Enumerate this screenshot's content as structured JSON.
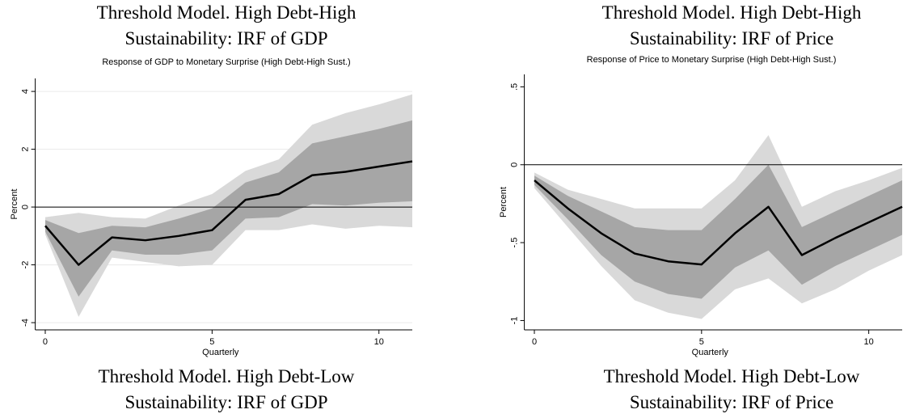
{
  "headings": [
    "Threshold Model. High Debt-High Sustainability: IRF of GDP",
    "Threshold Model. High Debt-High Sustainability: IRF of Price"
  ],
  "footer_headings": [
    "Threshold Model. High Debt-Low Sustainability: IRF of GDP",
    "Threshold Model. High Debt-Low Sustainability: IRF of Price"
  ],
  "chart_data": [
    {
      "type": "line",
      "title": "Response of GDP to Monetary Surprise (High Debt-High Sust.)",
      "xlabel": "Quarterly",
      "ylabel": "Percent",
      "x": [
        0,
        1,
        2,
        3,
        4,
        5,
        6,
        7,
        8,
        9,
        10,
        11
      ],
      "xlim": [
        -0.3,
        11
      ],
      "xticks": [
        0,
        5,
        10
      ],
      "ylim": [
        -4.25,
        4.45
      ],
      "yticks": [
        -4,
        -2,
        0,
        2,
        4
      ],
      "grid": true,
      "refline": 0,
      "bands": [
        {
          "color": "#d9d9d9",
          "upper": [
            -0.35,
            -0.2,
            -0.35,
            -0.4,
            0.05,
            0.45,
            1.25,
            1.65,
            2.85,
            3.25,
            3.55,
            3.9
          ],
          "lower": [
            -0.95,
            -3.8,
            -1.75,
            -1.9,
            -2.05,
            -2.0,
            -0.8,
            -0.8,
            -0.6,
            -0.75,
            -0.65,
            -0.7
          ]
        },
        {
          "color": "#a6a6a6",
          "upper": [
            -0.45,
            -0.9,
            -0.65,
            -0.7,
            -0.4,
            -0.05,
            0.85,
            1.2,
            2.2,
            2.45,
            2.7,
            3.0
          ],
          "lower": [
            -0.85,
            -3.1,
            -1.5,
            -1.65,
            -1.65,
            -1.5,
            -0.4,
            -0.35,
            0.1,
            0.05,
            0.15,
            0.2
          ]
        }
      ],
      "series": [
        {
          "color": "#000000",
          "values": [
            -0.65,
            -2.0,
            -1.05,
            -1.15,
            -1.0,
            -0.8,
            0.25,
            0.45,
            1.1,
            1.22,
            1.4,
            1.58
          ]
        }
      ]
    },
    {
      "type": "line",
      "title": "Response of Price to Monetary Surprise (High Debt-High Sust.)",
      "xlabel": "Quarterly",
      "ylabel": "Percent",
      "x": [
        0,
        1,
        2,
        3,
        4,
        5,
        6,
        7,
        8,
        9,
        10,
        11
      ],
      "xlim": [
        -0.3,
        11
      ],
      "xticks": [
        0,
        5,
        10
      ],
      "ylim": [
        -1.06,
        0.58
      ],
      "yticks": [
        -1,
        {
          "value": -0.5,
          "label": "-.5"
        },
        0,
        {
          "value": 0.5,
          "label": ".5"
        }
      ],
      "grid": false,
      "refline": 0,
      "bands": [
        {
          "color": "#d9d9d9",
          "upper": [
            -0.05,
            -0.16,
            -0.22,
            -0.28,
            -0.28,
            -0.28,
            -0.1,
            0.19,
            -0.27,
            -0.17,
            -0.1,
            -0.02
          ],
          "lower": [
            -0.15,
            -0.4,
            -0.65,
            -0.87,
            -0.95,
            -0.99,
            -0.8,
            -0.73,
            -0.89,
            -0.8,
            -0.68,
            -0.58
          ]
        },
        {
          "color": "#a6a6a6",
          "upper": [
            -0.07,
            -0.2,
            -0.3,
            -0.4,
            -0.42,
            -0.42,
            -0.22,
            0.0,
            -0.4,
            -0.3,
            -0.2,
            -0.1
          ],
          "lower": [
            -0.13,
            -0.35,
            -0.58,
            -0.75,
            -0.83,
            -0.86,
            -0.66,
            -0.55,
            -0.77,
            -0.65,
            -0.55,
            -0.45
          ]
        }
      ],
      "series": [
        {
          "color": "#000000",
          "values": [
            -0.1,
            -0.28,
            -0.44,
            -0.57,
            -0.62,
            -0.64,
            -0.44,
            -0.27,
            -0.58,
            -0.47,
            -0.37,
            -0.27
          ]
        }
      ]
    }
  ]
}
